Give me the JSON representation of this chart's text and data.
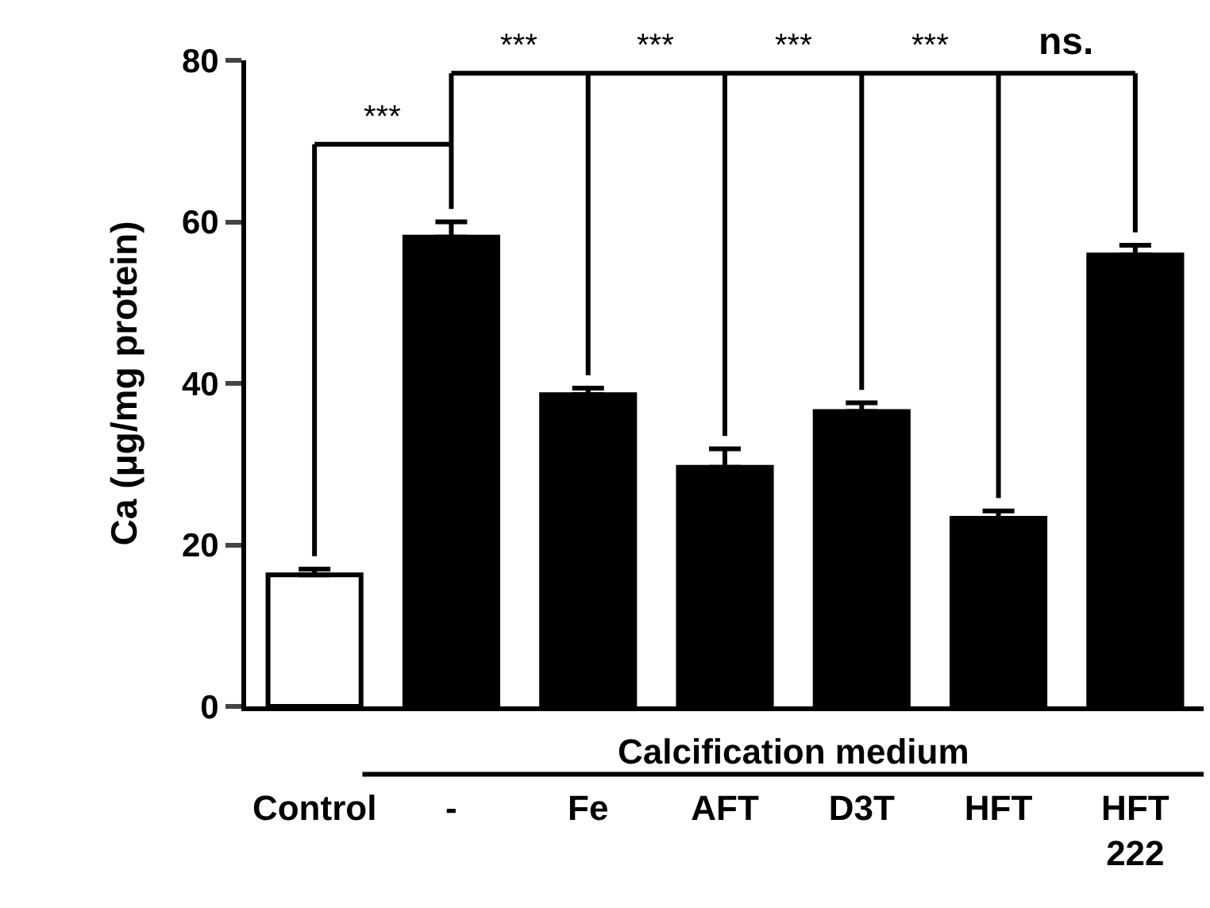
{
  "chart_data": {
    "type": "bar",
    "ylabel": "Ca (μg/mg protein)",
    "xlabel": "Calcification medium",
    "categories": [
      "Control",
      "-",
      "Fe",
      "AFT",
      "D3T",
      "HFT",
      "HFT 222"
    ],
    "values": [
      16.3,
      58.1,
      38.6,
      29.6,
      36.5,
      23.3,
      55.9
    ],
    "errors": [
      [
        16.3,
        17.0
      ],
      [
        58.1,
        60.0
      ],
      [
        38.6,
        39.4
      ],
      [
        29.6,
        31.9
      ],
      [
        36.5,
        37.6
      ],
      [
        23.3,
        24.2
      ],
      [
        55.9,
        57.1
      ]
    ],
    "colors": [
      "#ffffff",
      "#000000",
      "#000000",
      "#000000",
      "#000000",
      "#000000",
      "#000000"
    ],
    "ylim": [
      0,
      80
    ],
    "yticks": [
      0,
      20,
      40,
      60,
      80
    ],
    "annotations": [
      "***",
      "***",
      "***",
      "***",
      "***",
      "ns."
    ]
  }
}
